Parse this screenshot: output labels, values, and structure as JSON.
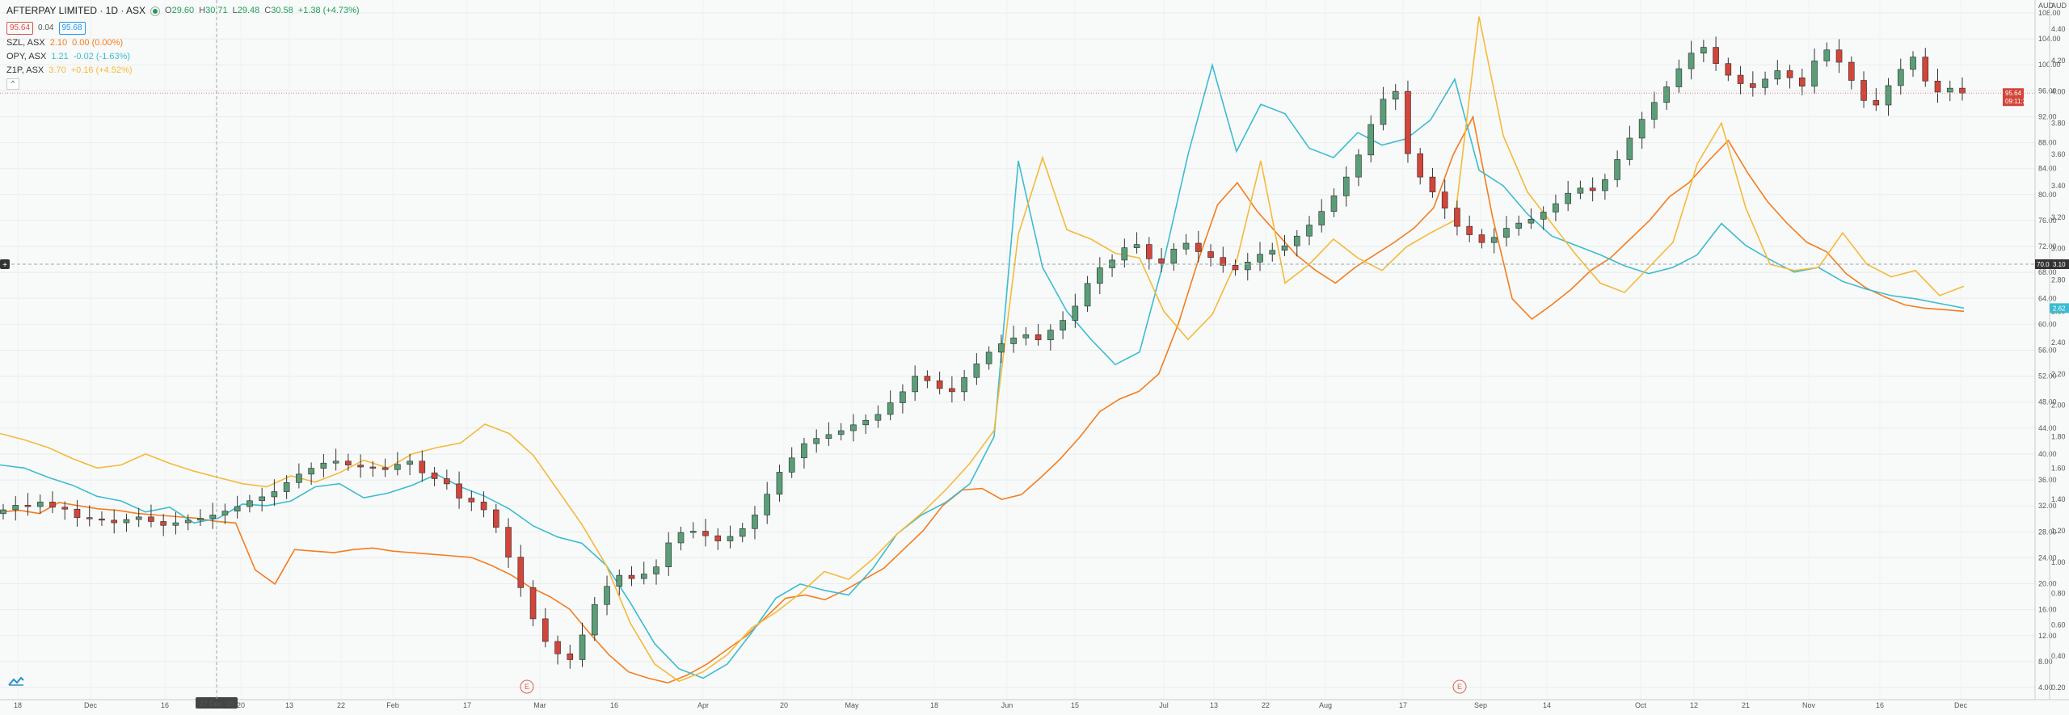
{
  "header": {
    "title": "AFTERPAY LIMITED · 1D · ASX",
    "status_icon": "market-open-icon",
    "ohlc": [
      {
        "label": "O",
        "value": "29.60"
      },
      {
        "label": "H",
        "value": "30.71"
      },
      {
        "label": "L",
        "value": "29.48"
      },
      {
        "label": "C",
        "value": "30.58"
      }
    ],
    "change": "+1.38 (+4.73%)",
    "sell_price": "95.64",
    "spread": "0.04",
    "buy_price": "95.68"
  },
  "comparisons": [
    {
      "symbol": "SZL, ASX",
      "last": "2.10",
      "change": "0.00 (0.00%)",
      "color": "#f57c1f"
    },
    {
      "symbol": "OPY, ASX",
      "last": "1.21",
      "change": "-0.02 (-1.63%)",
      "color": "#3cbcd0"
    },
    {
      "symbol": "Z1P, ASX",
      "last": "3.70",
      "change": "+0.16 (+4.52%)",
      "color": "#f5b93a"
    }
  ],
  "collapse_label": "^",
  "currency_left": "AUD",
  "currency_right": "AUD",
  "crosshair": {
    "date_label": "27 Dec '19",
    "left_value": "70.04",
    "right_value": "3.10"
  },
  "price_tag": {
    "value": "95.64",
    "countdown": "09:11:38"
  },
  "right_tag": "2.62",
  "earnings_marker": "E",
  "colors": {
    "up": "#5a9e78",
    "down": "#d2453a",
    "szl": "#f57c1f",
    "opy": "#3cbcd0",
    "z1p": "#f5b93a"
  },
  "chart_data": {
    "type": "candlestick",
    "title": "AFTERPAY LIMITED · 1D · ASX",
    "x_ticks": [
      "18",
      "Dec",
      "16",
      "27 Dec '19",
      "20",
      "13",
      "22",
      "Feb",
      "17",
      "Mar",
      "16",
      "Apr",
      "20",
      "May",
      "18",
      "Jun",
      "15",
      "Jul",
      "13",
      "22",
      "Aug",
      "17",
      "Sep",
      "14",
      "Oct",
      "12",
      "21",
      "Nov",
      "16",
      "Dec"
    ],
    "y_left_ticks": [
      "108.00",
      "104.00",
      "100.00",
      "96.00",
      "92.00",
      "88.00",
      "84.00",
      "80.00",
      "76.00",
      "72.00",
      "68.00",
      "64.00",
      "60.00",
      "56.00",
      "52.00",
      "48.00",
      "44.00",
      "40.00",
      "36.00",
      "32.00",
      "28.00",
      "24.00",
      "20.00",
      "16.00",
      "12.00",
      "8.00",
      "4.00"
    ],
    "y_right_ticks": [
      "4.40",
      "4.20",
      "4.00",
      "3.80",
      "3.60",
      "3.40",
      "3.20",
      "3.00",
      "2.80",
      "2.60",
      "2.40",
      "2.20",
      "2.00",
      "1.80",
      "1.60",
      "1.40",
      "1.20",
      "1.00",
      "0.80",
      "0.60",
      "0.40",
      "0.20"
    ],
    "ylim_left": [
      4,
      108
    ],
    "ylim_right": [
      0.2,
      4.4
    ],
    "apt_close": [
      31.4,
      32.1,
      31.9,
      32.6,
      31.8,
      31.5,
      30.2,
      30.0,
      29.8,
      29.4,
      29.9,
      30.3,
      29.6,
      29.0,
      29.4,
      29.8,
      30.1,
      30.6,
      31.2,
      31.9,
      32.8,
      33.4,
      34.2,
      35.6,
      36.9,
      37.8,
      38.6,
      38.9,
      38.3,
      38.0,
      37.9,
      37.6,
      38.4,
      38.9,
      37.1,
      36.2,
      35.4,
      33.2,
      32.6,
      31.4,
      28.7,
      24.1,
      19.4,
      14.6,
      11.1,
      9.2,
      8.3,
      12.1,
      16.8,
      19.6,
      21.3,
      20.8,
      21.5,
      22.6,
      26.3,
      27.9,
      28.1,
      27.4,
      26.6,
      27.3,
      28.5,
      30.6,
      33.8,
      37.2,
      39.4,
      41.6,
      42.4,
      43.0,
      43.6,
      44.5,
      45.2,
      46.1,
      47.9,
      49.6,
      52.0,
      51.3,
      50.1,
      49.6,
      51.8,
      53.9,
      55.7,
      57.0,
      57.9,
      58.4,
      57.6,
      59.1,
      60.6,
      62.8,
      66.3,
      68.7,
      69.9,
      71.8,
      72.3,
      70.1,
      69.4,
      71.6,
      72.5,
      71.2,
      70.3,
      69.1,
      68.4,
      69.6,
      70.8,
      71.4,
      72.1,
      73.6,
      75.3,
      77.4,
      79.8,
      82.7,
      86.1,
      90.8,
      94.7,
      95.9,
      86.3,
      82.7,
      80.4,
      77.9,
      75.1,
      73.8,
      72.6,
      73.4,
      74.8,
      75.6,
      76.2,
      77.3,
      78.6,
      80.2,
      81.0,
      80.6,
      82.3,
      85.4,
      88.7,
      91.6,
      94.2,
      96.6,
      99.4,
      101.8,
      102.7,
      100.2,
      98.4,
      97.1,
      96.5,
      97.8,
      99.1,
      98.0,
      96.7,
      100.6,
      102.3,
      100.4,
      97.6,
      94.5,
      93.8,
      96.8,
      99.3,
      101.2,
      97.5,
      95.8,
      96.4,
      95.64
    ],
    "series": [
      {
        "name": "SZL, ASX",
        "values": [
          1.32,
          1.33,
          1.31,
          1.38,
          1.36,
          1.34,
          1.33,
          1.31,
          1.3,
          1.29,
          1.28,
          1.26,
          1.25,
          0.95,
          0.86,
          1.08,
          1.07,
          1.06,
          1.08,
          1.09,
          1.07,
          1.06,
          1.05,
          1.04,
          1.03,
          0.98,
          0.92,
          0.84,
          0.78,
          0.7,
          0.55,
          0.41,
          0.3,
          0.26,
          0.23,
          0.28,
          0.35,
          0.44,
          0.53,
          0.65,
          0.77,
          0.79,
          0.76,
          0.82,
          0.89,
          0.96,
          1.08,
          1.2,
          1.36,
          1.46,
          1.47,
          1.4,
          1.43,
          1.54,
          1.66,
          1.8,
          1.96,
          2.04,
          2.09,
          2.2,
          2.52,
          2.92,
          3.28,
          3.42,
          3.24,
          3.1,
          2.96,
          2.86,
          2.78,
          2.88,
          2.96,
          3.04,
          3.13,
          3.26,
          3.6,
          3.84,
          3.2,
          2.68,
          2.55,
          2.64,
          2.74,
          2.86,
          2.94,
          3.06,
          3.18,
          3.33,
          3.42,
          3.56,
          3.69,
          3.48,
          3.3,
          3.16,
          3.04,
          2.98,
          2.84,
          2.75,
          2.69,
          2.64,
          2.62,
          2.61,
          2.6
        ]
      },
      {
        "name": "OPY, ASX",
        "values": [
          1.62,
          1.6,
          1.54,
          1.49,
          1.42,
          1.39,
          1.32,
          1.35,
          1.25,
          1.28,
          1.37,
          1.36,
          1.39,
          1.48,
          1.5,
          1.41,
          1.44,
          1.49,
          1.56,
          1.48,
          1.42,
          1.34,
          1.23,
          1.16,
          1.12,
          0.98,
          0.74,
          0.48,
          0.32,
          0.26,
          0.35,
          0.55,
          0.77,
          0.86,
          0.82,
          0.79,
          0.96,
          1.18,
          1.3,
          1.38,
          1.5,
          1.8,
          3.56,
          2.88,
          2.6,
          2.42,
          2.26,
          2.34,
          2.92,
          3.6,
          4.17,
          3.62,
          3.92,
          3.86,
          3.64,
          3.58,
          3.74,
          3.66,
          3.7,
          3.82,
          4.08,
          3.5,
          3.4,
          3.22,
          3.08,
          3.02,
          2.96,
          2.89,
          2.84,
          2.88,
          2.96,
          3.16,
          3.02,
          2.93,
          2.85,
          2.88,
          2.79,
          2.74,
          2.7,
          2.68,
          2.65,
          2.62
        ]
      },
      {
        "name": "Z1P, ASX",
        "values": [
          1.82,
          1.78,
          1.73,
          1.66,
          1.6,
          1.62,
          1.69,
          1.63,
          1.58,
          1.54,
          1.5,
          1.48,
          1.55,
          1.51,
          1.57,
          1.65,
          1.6,
          1.69,
          1.73,
          1.76,
          1.88,
          1.82,
          1.68,
          1.46,
          1.24,
          0.98,
          0.61,
          0.35,
          0.24,
          0.3,
          0.41,
          0.58,
          0.68,
          0.8,
          0.94,
          0.89,
          1.02,
          1.18,
          1.31,
          1.46,
          1.63,
          1.84,
          3.09,
          3.58,
          3.12,
          3.06,
          2.97,
          2.94,
          2.6,
          2.42,
          2.58,
          2.92,
          3.56,
          2.78,
          2.9,
          3.06,
          2.94,
          2.86,
          3.01,
          3.1,
          3.18,
          4.48,
          3.72,
          3.36,
          3.16,
          2.96,
          2.78,
          2.72,
          2.88,
          3.04,
          3.54,
          3.8,
          3.26,
          2.9,
          2.86,
          2.88,
          3.1,
          2.9,
          2.82,
          2.86,
          2.7,
          2.76
        ]
      }
    ],
    "grid": true
  }
}
